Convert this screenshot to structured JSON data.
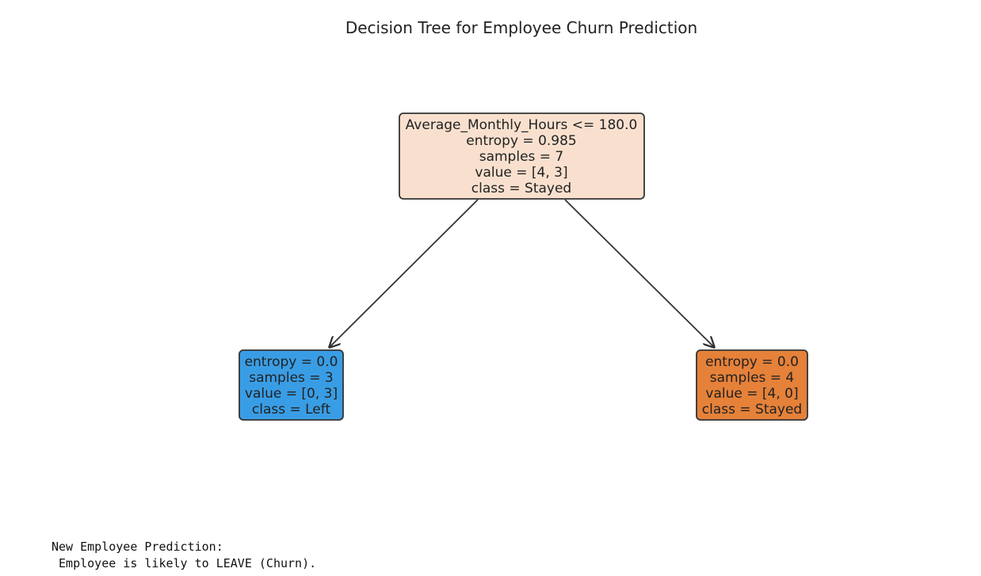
{
  "figure": {
    "title": "Decision Tree for Employee Churn Prediction",
    "nodes": [
      {
        "id": "root",
        "lines": [
          "Average_Monthly_Hours <= 180.0",
          "entropy = 0.985",
          "samples = 7",
          "value = [4, 3]",
          "class = Stayed"
        ],
        "fill": "#f9e0ce"
      },
      {
        "id": "left",
        "lines": [
          "entropy = 0.0",
          "samples = 3",
          "value = [0, 3]",
          "class = Left"
        ],
        "fill": "#399de5"
      },
      {
        "id": "right",
        "lines": [
          "entropy = 0.0",
          "samples = 4",
          "value = [4, 0]",
          "class = Stayed"
        ],
        "fill": "#e58139"
      }
    ],
    "edges": [
      {
        "from": "root",
        "to": "left"
      },
      {
        "from": "root",
        "to": "right"
      }
    ],
    "stroke_color": "#333333"
  },
  "output": {
    "line1": "New Employee Prediction:",
    "line2": " Employee is likely to LEAVE (Churn)."
  }
}
